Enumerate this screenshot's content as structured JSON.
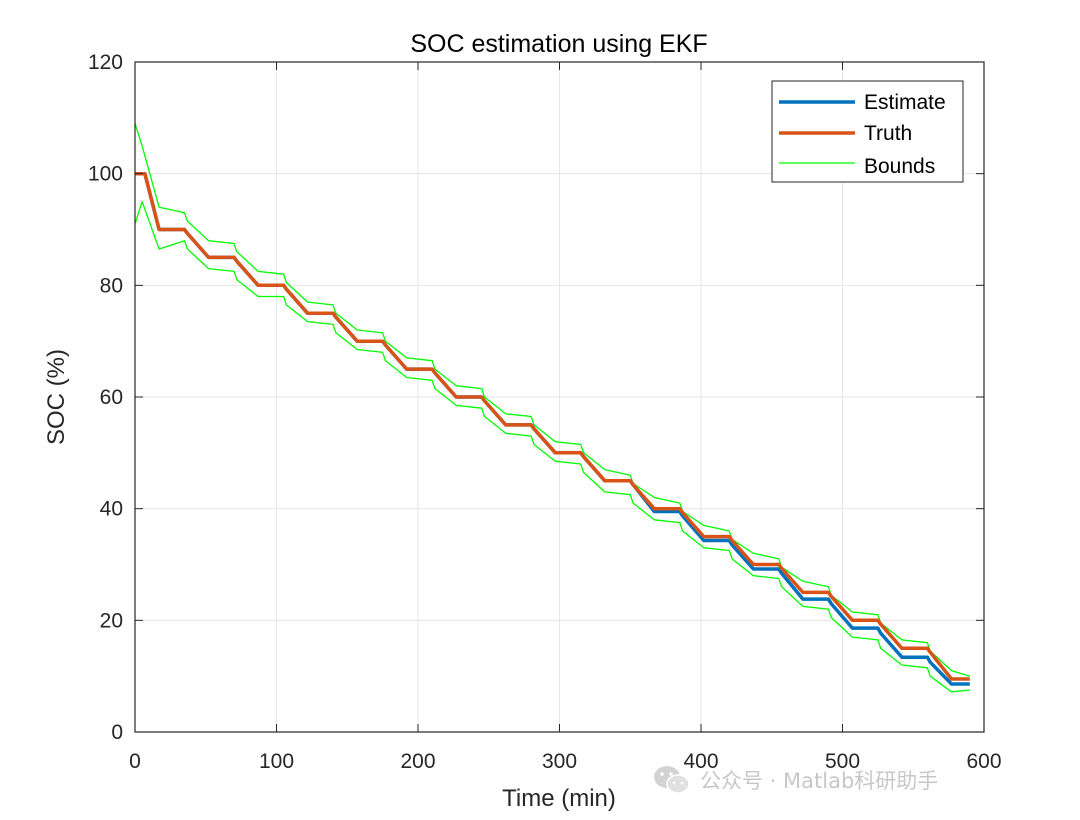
{
  "chart_data": {
    "type": "line",
    "title": "SOC estimation using EKF",
    "xlabel": "Time (min)",
    "ylabel": "SOC (%)",
    "xlim": [
      0,
      600
    ],
    "ylim": [
      0,
      120
    ],
    "xticks": [
      0,
      100,
      200,
      300,
      400,
      500,
      600
    ],
    "yticks": [
      0,
      20,
      40,
      60,
      80,
      100,
      120
    ],
    "grid": true,
    "legend_position": "top-right",
    "series": [
      {
        "name": "Estimate",
        "color": "#0072BD",
        "x": [
          0,
          7,
          17,
          35,
          37,
          52,
          70,
          72,
          87,
          105,
          107,
          122,
          140,
          142,
          157,
          175,
          177,
          192,
          210,
          212,
          227,
          245,
          247,
          262,
          280,
          282,
          297,
          315,
          317,
          332,
          350,
          352,
          367,
          385,
          387,
          402,
          420,
          422,
          437,
          455,
          457,
          472,
          490,
          492,
          507,
          525,
          527,
          542,
          560,
          562,
          577,
          590
        ],
        "y": [
          100,
          100,
          90,
          90,
          89.3,
          85,
          85,
          84.3,
          80,
          80,
          79.3,
          75,
          75,
          74.3,
          70,
          70,
          69.3,
          65,
          65,
          64.3,
          60,
          60,
          59.3,
          55,
          55,
          54.3,
          50,
          50,
          49.3,
          45,
          45,
          44.3,
          39.5,
          39.5,
          38.7,
          34.3,
          34.3,
          33.5,
          29.2,
          29.2,
          28.4,
          23.8,
          23.8,
          23,
          18.6,
          18.6,
          17.7,
          13.4,
          13.4,
          12.5,
          8.6,
          8.6
        ]
      },
      {
        "name": "Truth",
        "color": "#D95319",
        "x": [
          0,
          7,
          17,
          35,
          37,
          52,
          70,
          72,
          87,
          105,
          107,
          122,
          140,
          142,
          157,
          175,
          177,
          192,
          210,
          212,
          227,
          245,
          247,
          262,
          280,
          282,
          297,
          315,
          317,
          332,
          350,
          352,
          367,
          385,
          387,
          402,
          420,
          422,
          437,
          455,
          457,
          472,
          490,
          492,
          507,
          525,
          527,
          542,
          560,
          562,
          577,
          590
        ],
        "y": [
          100,
          100,
          90,
          90,
          89.3,
          85,
          85,
          84.3,
          80,
          80,
          79.3,
          75,
          75,
          74.3,
          70,
          70,
          69.3,
          65,
          65,
          64.3,
          60,
          60,
          59.3,
          55,
          55,
          54.3,
          50,
          50,
          49.3,
          45,
          45,
          44.3,
          40,
          40,
          39.3,
          35,
          35,
          34.3,
          30,
          30,
          29.3,
          25,
          25,
          24.3,
          20,
          20,
          19.3,
          15,
          15,
          14.3,
          9.5,
          9.5
        ]
      },
      {
        "name": "Bounds",
        "color": "#00FF00",
        "x": [
          0,
          5,
          17,
          35,
          37,
          52,
          70,
          72,
          87,
          105,
          107,
          122,
          140,
          142,
          157,
          175,
          177,
          192,
          210,
          212,
          227,
          245,
          247,
          262,
          280,
          282,
          297,
          315,
          317,
          332,
          350,
          352,
          367,
          385,
          387,
          402,
          420,
          422,
          437,
          455,
          457,
          472,
          490,
          492,
          507,
          525,
          527,
          542,
          560,
          562,
          577,
          590
        ],
        "y": [
          109,
          105,
          94,
          93,
          91.5,
          88,
          87.5,
          86,
          82.5,
          82,
          80.5,
          77,
          76.5,
          75,
          72,
          71.5,
          70,
          67,
          66.5,
          65,
          62,
          61.5,
          60,
          57,
          56.5,
          55,
          52,
          51.5,
          50,
          47,
          46,
          44.5,
          42,
          41,
          39.5,
          37,
          36,
          34.5,
          32,
          31,
          29.5,
          27,
          26,
          24.5,
          21.5,
          21,
          19.5,
          16.5,
          16,
          14.5,
          11,
          10
        ]
      },
      {
        "name": "",
        "color": "#00FF00",
        "x": [
          0,
          5,
          17,
          35,
          37,
          52,
          70,
          72,
          87,
          105,
          107,
          122,
          140,
          142,
          157,
          175,
          177,
          192,
          210,
          212,
          227,
          245,
          247,
          262,
          280,
          282,
          297,
          315,
          317,
          332,
          350,
          352,
          367,
          385,
          387,
          402,
          420,
          422,
          437,
          455,
          457,
          472,
          490,
          492,
          507,
          525,
          527,
          542,
          560,
          562,
          577,
          590
        ],
        "y": [
          91,
          95,
          86.5,
          88,
          86.5,
          83,
          82.5,
          81,
          78,
          78,
          76.5,
          73.5,
          73,
          71.5,
          68.5,
          68,
          66.5,
          63.5,
          63,
          61.5,
          58.5,
          58,
          56.5,
          53.5,
          53,
          51.5,
          48.5,
          48,
          46.5,
          43,
          42.5,
          41,
          38,
          37.5,
          36,
          33,
          32.5,
          31,
          28,
          27.5,
          26,
          22.5,
          22,
          20.5,
          17,
          16.5,
          15,
          12,
          11.5,
          10,
          7.2,
          7.5
        ]
      }
    ]
  },
  "watermark": {
    "text": "公众号 · Matlab科研助手",
    "icon": "wechat-icon"
  }
}
